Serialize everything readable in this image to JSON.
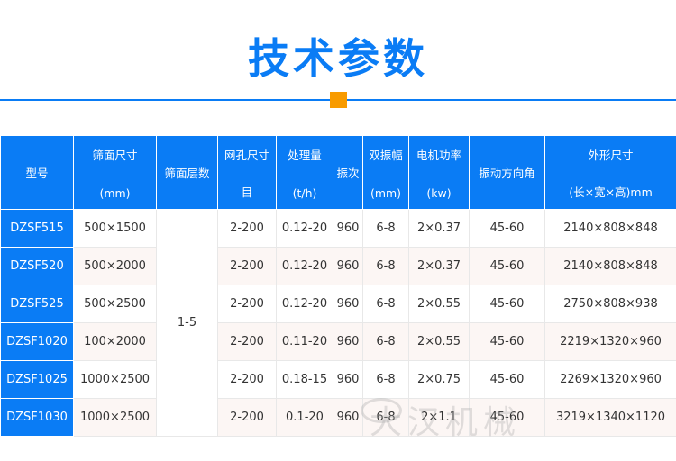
{
  "title": "技术参数",
  "colors": {
    "accent": "#0a7cf5",
    "marker": "#f89b00",
    "alt_row": "#fcf6f4"
  },
  "table": {
    "headers": [
      {
        "top": "型号",
        "bottom": ""
      },
      {
        "top": "筛面尺寸",
        "bottom": "(mm)"
      },
      {
        "top": "筛面层数",
        "bottom": ""
      },
      {
        "top": "网孔尺寸",
        "bottom": "目"
      },
      {
        "top": "处理量",
        "bottom": "(t/h)"
      },
      {
        "top": "振次",
        "bottom": ""
      },
      {
        "top": "双振幅",
        "bottom": "(mm)"
      },
      {
        "top": "电机功率",
        "bottom": "(kw)"
      },
      {
        "top": "振动方向角",
        "bottom": ""
      },
      {
        "top": "外形尺寸",
        "bottom": "(长×宽×高)mm"
      }
    ],
    "layers": "1-5",
    "rows": [
      {
        "model": "DZSF515",
        "screen": "500×1500",
        "mesh": "2-200",
        "capacity": "0.12-20",
        "freq": "960",
        "amp": "6-8",
        "power": "2×0.37",
        "angle": "45-60",
        "dims": "2140×808×848"
      },
      {
        "model": "DZSF520",
        "screen": "500×2000",
        "mesh": "2-200",
        "capacity": "0.12-20",
        "freq": "960",
        "amp": "6-8",
        "power": "2×0.37",
        "angle": "45-60",
        "dims": "2140×808×848"
      },
      {
        "model": "DZSF525",
        "screen": "500×2500",
        "mesh": "2-200",
        "capacity": "0.12-20",
        "freq": "960",
        "amp": "6-8",
        "power": "2×0.55",
        "angle": "45-60",
        "dims": "2750×808×938"
      },
      {
        "model": "DZSF1020",
        "screen": "100×2000",
        "mesh": "2-200",
        "capacity": "0.11-20",
        "freq": "960",
        "amp": "6-8",
        "power": "2×0.55",
        "angle": "45-60",
        "dims": "2219×1320×960"
      },
      {
        "model": "DZSF1025",
        "screen": "1000×2500",
        "mesh": "2-200",
        "capacity": "0.18-15",
        "freq": "960",
        "amp": "6-8",
        "power": "2×0.75",
        "angle": "45-60",
        "dims": "2269×1320×960"
      },
      {
        "model": "DZSF1030",
        "screen": "1000×2500",
        "mesh": "2-200",
        "capacity": "0.1-20",
        "freq": "960",
        "amp": "6-8",
        "power": "2×1.1",
        "angle": "45-60",
        "dims": "3219×1340×1120"
      }
    ]
  },
  "watermark": "大汉机械"
}
